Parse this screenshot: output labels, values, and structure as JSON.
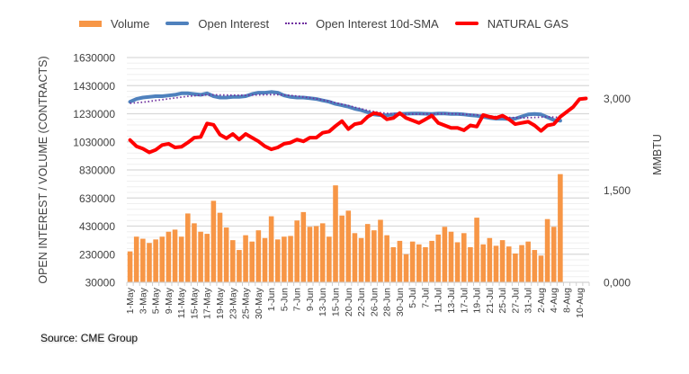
{
  "chart_data": {
    "type": "bar",
    "title": "",
    "xlabel": "",
    "ylabel": "OPEN INTEREST / VOLUME (CONTRACTS)",
    "y2label": "MMBTU",
    "ylim": [
      30000,
      1630000
    ],
    "y2lim": [
      0,
      3.667
    ],
    "yticks": [
      "1630000",
      "1430000",
      "1230000",
      "1030000",
      "830000",
      "630000",
      "430000",
      "230000",
      "30000"
    ],
    "ytick_values": [
      1630000,
      1430000,
      1230000,
      1030000,
      830000,
      630000,
      430000,
      230000,
      30000
    ],
    "y2ticks": [
      "3,000",
      "1,500",
      "0,000"
    ],
    "y2tick_values": [
      3.0,
      1.5,
      0.0
    ],
    "grid": true,
    "legend_position": "top",
    "x_tick_labels": [
      "1-May",
      "3-May",
      "5-May",
      "9-May",
      "11-May",
      "15-May",
      "17-May",
      "19-May",
      "23-May",
      "25-May",
      "30-May",
      "1-Jun",
      "5-Jun",
      "7-Jun",
      "9-Jun",
      "13-Jun",
      "15-Jun",
      "20-Jun",
      "22-Jun",
      "26-Jun",
      "28-Jun",
      "30-Jun",
      "5-Jul",
      "7-Jul",
      "11-Jul",
      "13-Jul",
      "17-Jul",
      "19-Jul",
      "21-Jul",
      "25-Jul",
      "27-Jul",
      "31-Jul",
      "2-Aug",
      "4-Aug",
      "8-Aug",
      "10-Aug"
    ],
    "series": [
      {
        "name": "Volume",
        "type": "bar",
        "axis": "left",
        "color": "#F79646",
        "values": [
          250000,
          355000,
          340000,
          310000,
          335000,
          355000,
          390000,
          405000,
          355000,
          520000,
          450000,
          390000,
          375000,
          610000,
          525000,
          420000,
          330000,
          260000,
          365000,
          320000,
          400000,
          345000,
          500000,
          335000,
          355000,
          360000,
          470000,
          530000,
          425000,
          430000,
          450000,
          355000,
          720000,
          505000,
          540000,
          380000,
          345000,
          445000,
          400000,
          475000,
          365000,
          280000,
          325000,
          230000,
          320000,
          300000,
          280000,
          325000,
          370000,
          425000,
          390000,
          315000,
          380000,
          280000,
          490000,
          300000,
          345000,
          290000,
          330000,
          285000,
          235000,
          295000,
          320000,
          260000,
          220000,
          480000,
          425000,
          800000,
          null,
          null,
          null,
          null
        ]
      },
      {
        "name": "Open Interest",
        "type": "line",
        "axis": "left",
        "color": "#4F81BD",
        "values": [
          1315000,
          1335000,
          1345000,
          1350000,
          1355000,
          1355000,
          1360000,
          1365000,
          1375000,
          1375000,
          1370000,
          1365000,
          1375000,
          1355000,
          1345000,
          1345000,
          1350000,
          1350000,
          1355000,
          1370000,
          1380000,
          1380000,
          1385000,
          1380000,
          1360000,
          1350000,
          1345000,
          1345000,
          1340000,
          1335000,
          1325000,
          1315000,
          1300000,
          1290000,
          1280000,
          1265000,
          1255000,
          1240000,
          1225000,
          1220000,
          1220000,
          1225000,
          1228000,
          1230000,
          1232000,
          1232000,
          1230000,
          1228000,
          1232000,
          1232000,
          1228000,
          1228000,
          1225000,
          1220000,
          1215000,
          1208000,
          1200000,
          1195000,
          1195000,
          1192000,
          1195000,
          1210000,
          1225000,
          1228000,
          1225000,
          1205000,
          1185000,
          1180000,
          null,
          null,
          null,
          null
        ]
      },
      {
        "name": "Open Interest 10d-SMA",
        "type": "line",
        "axis": "left",
        "color": "#7030A0",
        "style": "dotted",
        "values": [
          1305000,
          1308000,
          1312000,
          1318000,
          1325000,
          1330000,
          1336000,
          1342000,
          1348000,
          1354000,
          1358000,
          1362000,
          1364000,
          1365000,
          1364000,
          1363000,
          1362000,
          1362000,
          1362000,
          1363000,
          1364000,
          1365000,
          1366000,
          1366000,
          1364000,
          1360000,
          1356000,
          1350000,
          1344000,
          1336000,
          1328000,
          1318000,
          1308000,
          1298000,
          1288000,
          1276000,
          1265000,
          1254000,
          1245000,
          1238000,
          1233000,
          1230000,
          1229000,
          1228000,
          1228000,
          1228000,
          1229000,
          1229000,
          1230000,
          1230000,
          1230000,
          1228000,
          1226000,
          1224000,
          1222000,
          1218000,
          1214000,
          1210000,
          1206000,
          1204000,
          1202000,
          1200000,
          1202000,
          1204000,
          1206000,
          1208000,
          1206000,
          1204000,
          null,
          null,
          null,
          null
        ]
      },
      {
        "name": "NATURAL GAS",
        "type": "line",
        "axis": "right",
        "color": "#FF0000",
        "values": [
          2.32,
          2.22,
          2.18,
          2.12,
          2.16,
          2.24,
          2.26,
          2.2,
          2.21,
          2.28,
          2.36,
          2.37,
          2.59,
          2.57,
          2.41,
          2.35,
          2.42,
          2.33,
          2.42,
          2.36,
          2.3,
          2.22,
          2.17,
          2.2,
          2.26,
          2.28,
          2.33,
          2.3,
          2.36,
          2.36,
          2.44,
          2.46,
          2.55,
          2.63,
          2.5,
          2.58,
          2.6,
          2.7,
          2.76,
          2.74,
          2.66,
          2.68,
          2.76,
          2.68,
          2.64,
          2.6,
          2.66,
          2.72,
          2.6,
          2.56,
          2.52,
          2.52,
          2.48,
          2.56,
          2.54,
          2.73,
          2.7,
          2.68,
          2.72,
          2.66,
          2.58,
          2.6,
          2.62,
          2.56,
          2.47,
          2.56,
          2.58,
          2.7,
          2.78,
          2.86,
          2.99,
          3.0
        ]
      }
    ]
  },
  "source": "Source: CME Group"
}
